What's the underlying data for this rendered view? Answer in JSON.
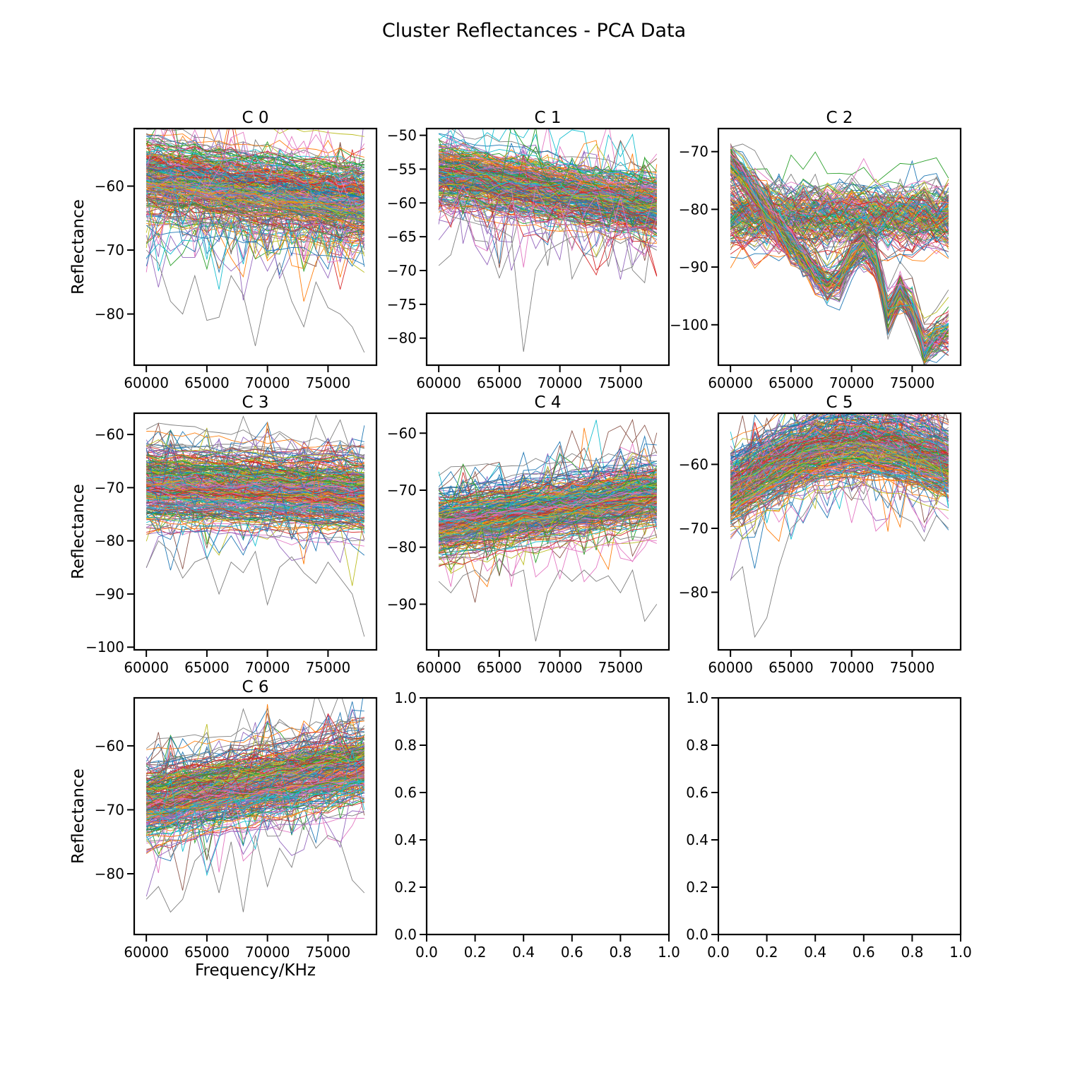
{
  "chart_data": {
    "type": "line",
    "title": "Cluster Reflectances - PCA Data",
    "xlabel": "Frequency/KHz",
    "ylabel": "Reflectance",
    "x": [
      60000,
      61000,
      62000,
      63000,
      64000,
      65000,
      66000,
      67000,
      68000,
      69000,
      70000,
      71000,
      72000,
      73000,
      74000,
      75000,
      76000,
      77000,
      78000
    ],
    "palette": [
      "#1f77b4",
      "#ff7f0e",
      "#2ca02c",
      "#d62728",
      "#9467bd",
      "#8c564b",
      "#e377c2",
      "#7f7f7f",
      "#bcbd22",
      "#17becf"
    ],
    "panels": [
      {
        "title": "C 0",
        "xlim": [
          59000,
          79000
        ],
        "xticks": [
          60000,
          65000,
          70000,
          75000
        ],
        "ylim": [
          -88,
          -51
        ],
        "yticks": [
          -60,
          -70,
          -80
        ],
        "series_count": 300,
        "mean_start": -58.5,
        "mean_end": -62.5,
        "spread": 2.8,
        "example_outlier": [
          -70,
          -72,
          -78,
          -80,
          -74,
          -81,
          -80.5,
          -74,
          -77,
          -85,
          -76,
          -72,
          -78,
          -82,
          -75,
          -79,
          -80,
          -82,
          -86
        ]
      },
      {
        "title": "C 1",
        "xlim": [
          59000,
          79000
        ],
        "xticks": [
          60000,
          65000,
          70000,
          75000
        ],
        "ylim": [
          -84,
          -49
        ],
        "yticks": [
          -50,
          -55,
          -60,
          -65,
          -70,
          -75,
          -80
        ],
        "series_count": 300,
        "mean_start": -55.5,
        "mean_end": -60.5,
        "spread": 2.0,
        "example_outlier": [
          -61,
          -62,
          -62.5,
          -63,
          -63.5,
          -64,
          -65,
          -82,
          -70,
          -67,
          -66,
          -65,
          -65,
          -64,
          -65,
          -66,
          -65,
          -66,
          -67
        ]
      },
      {
        "title": "C 2",
        "xlim": [
          59000,
          79000
        ],
        "xticks": [
          60000,
          65000,
          70000,
          75000
        ],
        "ylim": [
          -107,
          -66
        ],
        "yticks": [
          -70,
          -80,
          -90,
          -100
        ],
        "series_count": 240,
        "group_a": {
          "share": 0.6,
          "mean": -81.5,
          "spread": 2.5
        },
        "group_b": {
          "share": 0.4,
          "mean": [
            -72,
            -74,
            -77,
            -80,
            -83,
            -86,
            -88,
            -91,
            -93,
            -92,
            -88,
            -86,
            -89,
            -98,
            -94,
            -97,
            -104,
            -102,
            -101
          ]
        }
      },
      {
        "title": "C 3",
        "xlim": [
          59000,
          79000
        ],
        "xticks": [
          60000,
          65000,
          70000,
          75000
        ],
        "ylim": [
          -100.5,
          -56
        ],
        "yticks": [
          -60,
          -70,
          -80,
          -90,
          -100
        ],
        "series_count": 300,
        "mean_start": -69.5,
        "mean_end": -71.0,
        "spread": 3.2,
        "example_outlier": [
          -85,
          -80,
          -82,
          -87,
          -84,
          -83,
          -90,
          -84,
          -86,
          -82,
          -92,
          -85,
          -83,
          -86,
          -88,
          -84,
          -87,
          -90,
          -98
        ]
      },
      {
        "title": "C 4",
        "xlim": [
          59000,
          79000
        ],
        "xticks": [
          60000,
          65000,
          70000,
          75000
        ],
        "ylim": [
          -98,
          -56.5
        ],
        "yticks": [
          -60,
          -70,
          -80,
          -90
        ],
        "series_count": 300,
        "mean_start": -76.0,
        "mean_end": -70.5,
        "spread": 2.6,
        "example_outlier": [
          -86,
          -88,
          -85,
          -84,
          -86,
          -82,
          -85,
          -84,
          -96.5,
          -88,
          -84,
          -86,
          -84,
          -86,
          -85,
          -88,
          -84,
          -93,
          -90
        ]
      },
      {
        "title": "C 5",
        "xlim": [
          59000,
          79000
        ],
        "xticks": [
          60000,
          65000,
          70000,
          75000
        ],
        "ylim": [
          -89,
          -52
        ],
        "yticks": [
          -60,
          -70,
          -80
        ],
        "series_count": 300,
        "mean_start": -64.0,
        "mean_end": -60.0,
        "hump": 5.0,
        "spread": 2.4,
        "example_outlier": [
          -78,
          -76,
          -87,
          -84,
          -76,
          -70,
          -68,
          -65,
          -63,
          -62,
          -62,
          -63,
          -64,
          -66,
          -68,
          -69,
          -72,
          -68,
          -70
        ]
      },
      {
        "title": "C 6",
        "xlim": [
          59000,
          79000
        ],
        "xticks": [
          60000,
          65000,
          70000,
          75000
        ],
        "ylim": [
          -89.5,
          -52.5
        ],
        "yticks": [
          -60,
          -70,
          -80
        ],
        "series_count": 300,
        "mean_start": -69.0,
        "mean_end": -63.0,
        "spread": 2.6,
        "example_outlier": [
          -84,
          -82,
          -86,
          -84,
          -78,
          -76,
          -83,
          -75,
          -86,
          -74,
          -82,
          -76,
          -79,
          -72,
          -76,
          -74,
          -75,
          -81,
          -83
        ]
      },
      {
        "title": "",
        "empty": true,
        "xlim": [
          0,
          1
        ],
        "xticks": [
          0.0,
          0.2,
          0.4,
          0.6,
          0.8,
          1.0
        ],
        "xtick_labels": [
          "0.0",
          "0.2",
          "0.4",
          "0.6",
          "0.8",
          "1.0"
        ],
        "ylim": [
          0,
          1
        ],
        "yticks": [
          0.0,
          0.2,
          0.4,
          0.6,
          0.8,
          1.0
        ],
        "ytick_labels": [
          "0.0",
          "0.2",
          "0.4",
          "0.6",
          "0.8",
          "1.0"
        ]
      },
      {
        "title": "",
        "empty": true,
        "xlim": [
          0,
          1
        ],
        "xticks": [
          0.0,
          0.2,
          0.4,
          0.6,
          0.8,
          1.0
        ],
        "xtick_labels": [
          "0.0",
          "0.2",
          "0.4",
          "0.6",
          "0.8",
          "1.0"
        ],
        "ylim": [
          0,
          1
        ],
        "yticks": [
          0.0,
          0.2,
          0.4,
          0.6,
          0.8,
          1.0
        ],
        "ytick_labels": [
          "0.0",
          "0.2",
          "0.4",
          "0.6",
          "0.8",
          "1.0"
        ]
      }
    ]
  }
}
